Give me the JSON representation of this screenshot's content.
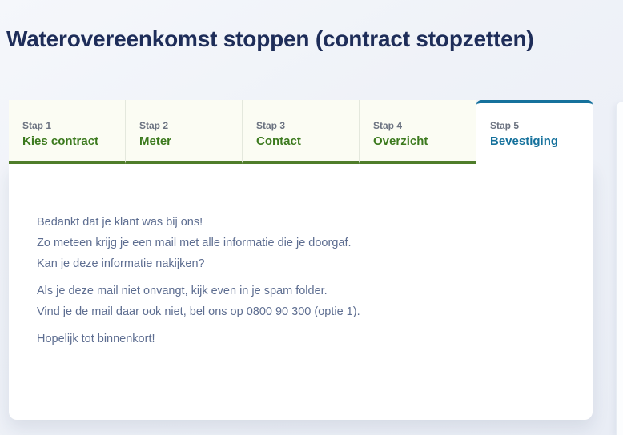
{
  "header": {
    "title": "Waterovereenkomst stoppen (contract stopzetten)"
  },
  "wizard": {
    "active_step": 5,
    "steps": [
      {
        "step": "Stap 1",
        "label": "Kies contract",
        "state": "completed"
      },
      {
        "step": "Stap 2",
        "label": "Meter",
        "state": "completed"
      },
      {
        "step": "Stap 3",
        "label": "Contact",
        "state": "completed"
      },
      {
        "step": "Stap 4",
        "label": "Overzicht",
        "state": "completed"
      },
      {
        "step": "Stap 5",
        "label": "Bevestiging",
        "state": "active"
      }
    ]
  },
  "content": {
    "lines": [
      "Bedankt dat je klant was bij ons!",
      "Zo meteen krijg je een mail met alle informatie die je doorgaf.",
      "Kan je deze informatie nakijken?",
      "Als je deze mail niet onvangt, kijk even in je spam folder.",
      "Vind je de mail daar ook niet, bel ons op 0800 90 300 (optie 1).",
      "Hopelijk tot binnenkort!"
    ]
  },
  "colors": {
    "title_navy": "#1e2d59",
    "accent_green": "#4f7d2a",
    "accent_teal": "#15719c",
    "body_text": "#5e6e91",
    "tab_background": "#fbfcf3"
  }
}
